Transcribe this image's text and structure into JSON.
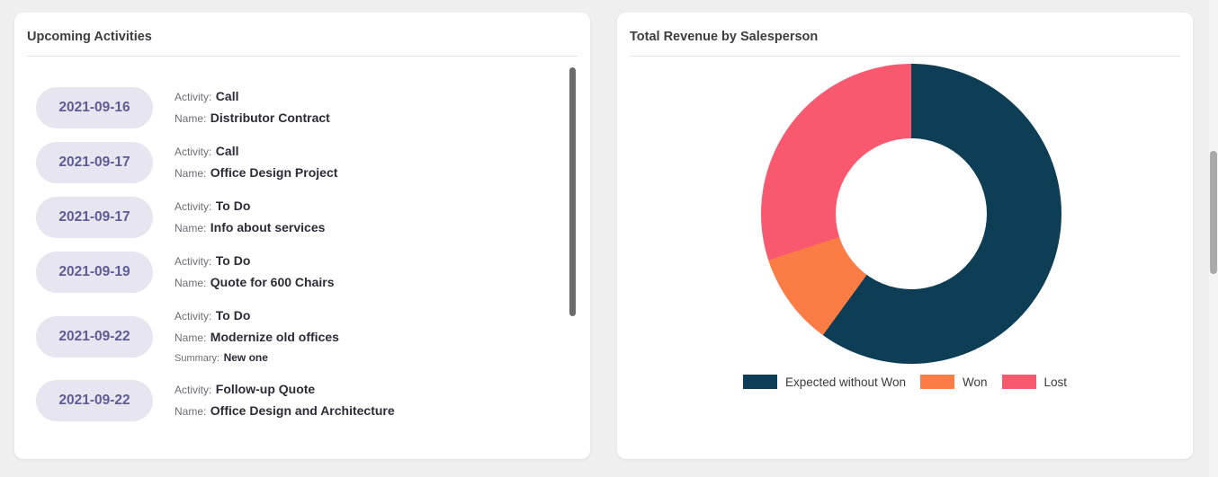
{
  "activities_card": {
    "title": "Upcoming Activities",
    "labels": {
      "activity": "Activity:",
      "name": "Name:",
      "summary": "Summary:"
    },
    "items": [
      {
        "date": "2021-09-16",
        "activity": "Call",
        "name": "Distributor Contract"
      },
      {
        "date": "2021-09-17",
        "activity": "Call",
        "name": "Office Design Project"
      },
      {
        "date": "2021-09-17",
        "activity": "To Do",
        "name": "Info about services"
      },
      {
        "date": "2021-09-19",
        "activity": "To Do",
        "name": "Quote for 600 Chairs"
      },
      {
        "date": "2021-09-22",
        "activity": "To Do",
        "name": "Modernize old offices",
        "summary": "New one"
      },
      {
        "date": "2021-09-22",
        "activity": "Follow-up Quote",
        "name": "Office Design and Architecture"
      }
    ]
  },
  "revenue_card": {
    "title": "Total Revenue by Salesperson"
  },
  "chart_data": {
    "type": "pie",
    "donut": true,
    "title": "Total Revenue by Salesperson",
    "labels": [
      "Expected without Won",
      "Won",
      "Lost"
    ],
    "values": [
      60,
      10,
      30
    ],
    "colors": [
      "#0e3d56",
      "#fb7c45",
      "#f9596e"
    ],
    "legend_position": "bottom"
  }
}
